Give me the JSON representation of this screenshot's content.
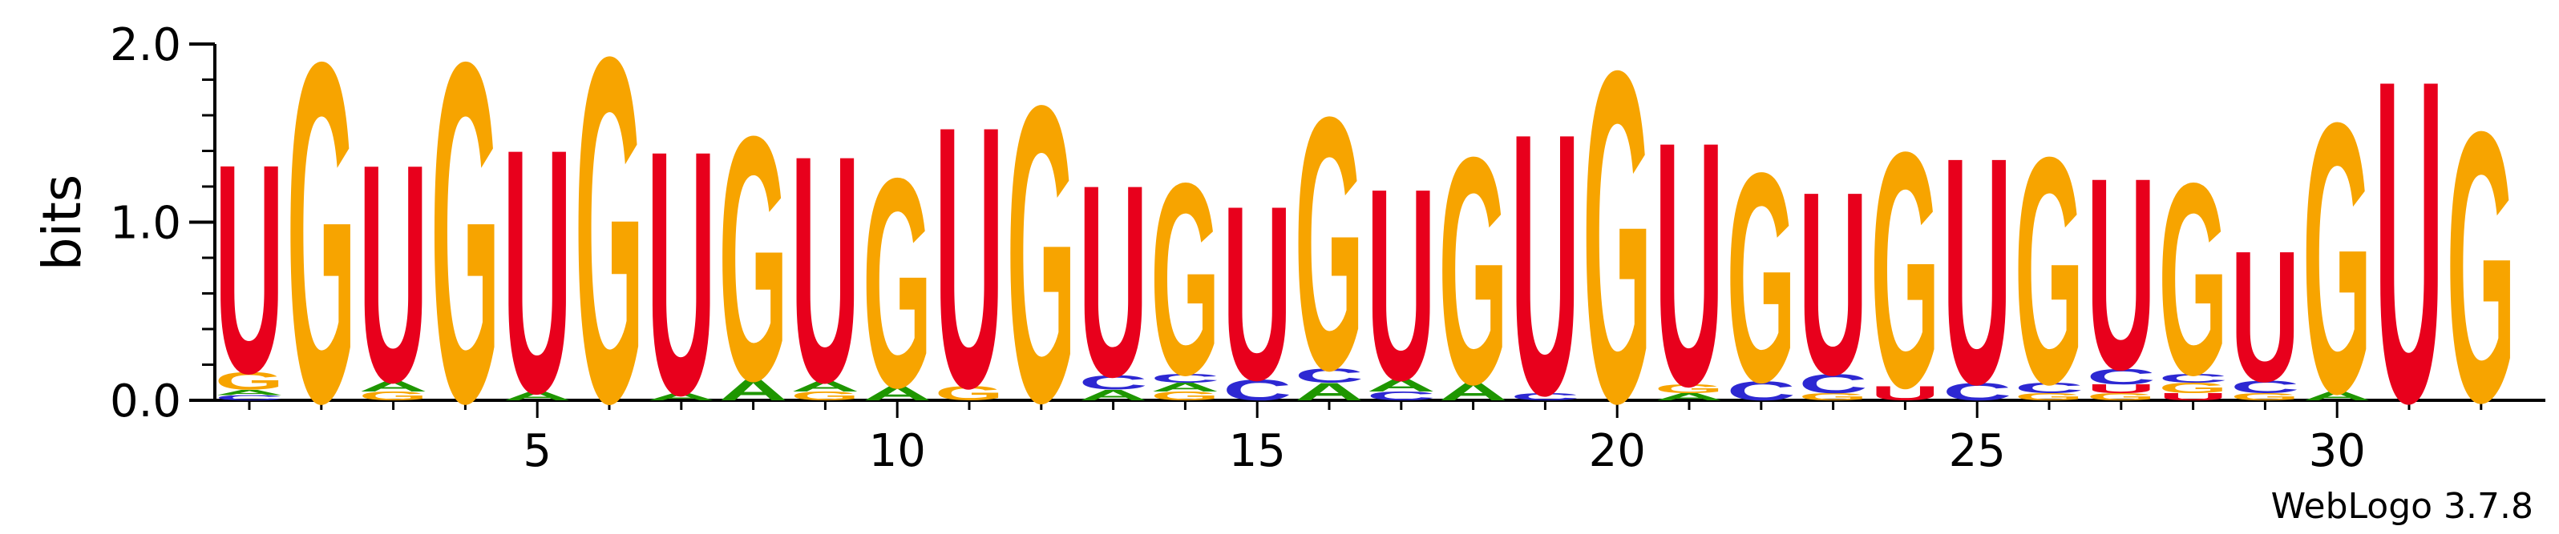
{
  "chart_data": {
    "type": "sequence-logo",
    "ylabel": "bits",
    "ylim": [
      0,
      2.0
    ],
    "y_ticks": [
      "0.0",
      "1.0",
      "2.0"
    ],
    "x_ticks": [
      "5",
      "10",
      "15",
      "20",
      "25",
      "30"
    ],
    "footer": "WebLogo 3.7.8",
    "colors": {
      "G": "#f7a400",
      "U": "#e8001c",
      "A": "#1e9600",
      "C": "#2d28d2"
    },
    "positions": [
      {
        "pos": 1,
        "stack": [
          [
            "C",
            0.03
          ],
          [
            "A",
            0.03
          ],
          [
            "G",
            0.1
          ],
          [
            "U",
            1.2
          ]
        ]
      },
      {
        "pos": 2,
        "stack": [
          [
            "G",
            1.95
          ]
        ]
      },
      {
        "pos": 3,
        "stack": [
          [
            "G",
            0.05
          ],
          [
            "A",
            0.06
          ],
          [
            "U",
            1.25
          ]
        ]
      },
      {
        "pos": 4,
        "stack": [
          [
            "G",
            1.95
          ]
        ]
      },
      {
        "pos": 5,
        "stack": [
          [
            "A",
            0.05
          ],
          [
            "U",
            1.4
          ]
        ]
      },
      {
        "pos": 6,
        "stack": [
          [
            "G",
            1.98
          ]
        ]
      },
      {
        "pos": 7,
        "stack": [
          [
            "A",
            0.04
          ],
          [
            "U",
            1.4
          ]
        ]
      },
      {
        "pos": 8,
        "stack": [
          [
            "A",
            0.12
          ],
          [
            "G",
            1.4
          ]
        ]
      },
      {
        "pos": 9,
        "stack": [
          [
            "G",
            0.05
          ],
          [
            "A",
            0.06
          ],
          [
            "U",
            1.3
          ]
        ]
      },
      {
        "pos": 10,
        "stack": [
          [
            "A",
            0.08
          ],
          [
            "G",
            1.2
          ]
        ]
      },
      {
        "pos": 11,
        "stack": [
          [
            "G",
            0.08
          ],
          [
            "U",
            1.5
          ]
        ]
      },
      {
        "pos": 12,
        "stack": [
          [
            "G",
            1.7
          ]
        ]
      },
      {
        "pos": 13,
        "stack": [
          [
            "A",
            0.06
          ],
          [
            "C",
            0.08
          ],
          [
            "U",
            1.1
          ]
        ]
      },
      {
        "pos": 14,
        "stack": [
          [
            "G",
            0.05
          ],
          [
            "A",
            0.05
          ],
          [
            "C",
            0.05
          ],
          [
            "G",
            1.1
          ]
        ]
      },
      {
        "pos": 15,
        "stack": [
          [
            "C",
            0.12
          ],
          [
            "U",
            1.0
          ]
        ]
      },
      {
        "pos": 16,
        "stack": [
          [
            "A",
            0.1
          ],
          [
            "C",
            0.08
          ],
          [
            "G",
            1.45
          ]
        ]
      },
      {
        "pos": 17,
        "stack": [
          [
            "C",
            0.05
          ],
          [
            "A",
            0.07
          ],
          [
            "U",
            1.1
          ]
        ]
      },
      {
        "pos": 18,
        "stack": [
          [
            "A",
            0.1
          ],
          [
            "G",
            1.3
          ]
        ]
      },
      {
        "pos": 19,
        "stack": [
          [
            "C",
            0.04
          ],
          [
            "U",
            1.5
          ]
        ]
      },
      {
        "pos": 20,
        "stack": [
          [
            "G",
            1.9
          ]
        ]
      },
      {
        "pos": 21,
        "stack": [
          [
            "A",
            0.04
          ],
          [
            "G",
            0.05
          ],
          [
            "U",
            1.4
          ]
        ]
      },
      {
        "pos": 22,
        "stack": [
          [
            "C",
            0.11
          ],
          [
            "G",
            1.2
          ]
        ]
      },
      {
        "pos": 23,
        "stack": [
          [
            "G",
            0.04
          ],
          [
            "C",
            0.11
          ],
          [
            "U",
            1.05
          ]
        ]
      },
      {
        "pos": 24,
        "stack": [
          [
            "U",
            0.08
          ],
          [
            "G",
            1.35
          ]
        ]
      },
      {
        "pos": 25,
        "stack": [
          [
            "C",
            0.1
          ],
          [
            "U",
            1.3
          ]
        ]
      },
      {
        "pos": 26,
        "stack": [
          [
            "G",
            0.04
          ],
          [
            "C",
            0.06
          ],
          [
            "G",
            1.3
          ]
        ]
      },
      {
        "pos": 27,
        "stack": [
          [
            "G",
            0.04
          ],
          [
            "U",
            0.05
          ],
          [
            "C",
            0.09
          ],
          [
            "U",
            1.1
          ]
        ]
      },
      {
        "pos": 28,
        "stack": [
          [
            "U",
            0.04
          ],
          [
            "G",
            0.06
          ],
          [
            "C",
            0.05
          ],
          [
            "G",
            1.1
          ]
        ]
      },
      {
        "pos": 29,
        "stack": [
          [
            "G",
            0.04
          ],
          [
            "C",
            0.07
          ],
          [
            "U",
            0.75
          ]
        ]
      },
      {
        "pos": 30,
        "stack": [
          [
            "A",
            0.05
          ],
          [
            "G",
            1.55
          ]
        ]
      },
      {
        "pos": 31,
        "stack": [
          [
            "U",
            1.85
          ]
        ]
      },
      {
        "pos": 32,
        "stack": [
          [
            "G",
            1.55
          ]
        ]
      }
    ]
  }
}
